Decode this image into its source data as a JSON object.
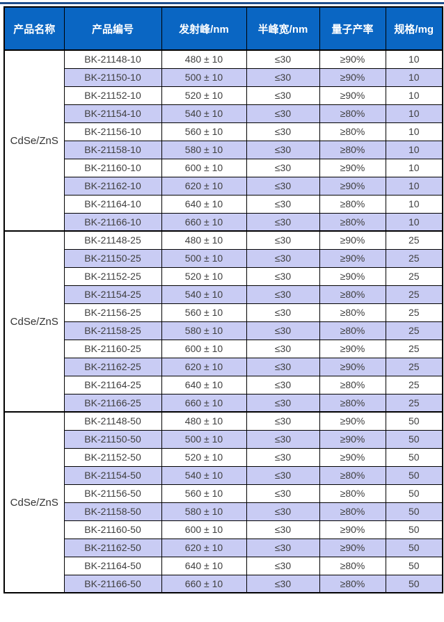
{
  "colors": {
    "header_bg": "#0A66C3",
    "header_text": "#FFFFFF",
    "row_bg": "#FFFFFF",
    "row_alt_bg": "#C9CCF4",
    "border": "#000000",
    "cell_text": "#3F3F3F",
    "group_text": "#333333",
    "top_strip": "#1F4E8C"
  },
  "table": {
    "headers": [
      "产品名称",
      "产品编号",
      "发射峰/nm",
      "半峰宽/nm",
      "量子产率",
      "规格/mg"
    ],
    "groups": [
      {
        "product_name": "CdSe/ZnS",
        "rows": [
          {
            "code": "BK-21148-10",
            "emission": "480 ± 10",
            "fwhm": "≤30",
            "qy": "≥90%",
            "spec": "10"
          },
          {
            "code": "BK-21150-10",
            "emission": "500 ± 10",
            "fwhm": "≤30",
            "qy": "≥90%",
            "spec": "10"
          },
          {
            "code": "BK-21152-10",
            "emission": "520 ± 10",
            "fwhm": "≤30",
            "qy": "≥90%",
            "spec": "10"
          },
          {
            "code": "BK-21154-10",
            "emission": "540 ± 10",
            "fwhm": "≤30",
            "qy": "≥80%",
            "spec": "10"
          },
          {
            "code": "BK-21156-10",
            "emission": "560 ± 10",
            "fwhm": "≤30",
            "qy": "≥80%",
            "spec": "10"
          },
          {
            "code": "BK-21158-10",
            "emission": "580 ± 10",
            "fwhm": "≤30",
            "qy": "≥80%",
            "spec": "10"
          },
          {
            "code": "BK-21160-10",
            "emission": "600 ± 10",
            "fwhm": "≤30",
            "qy": "≥90%",
            "spec": "10"
          },
          {
            "code": "BK-21162-10",
            "emission": "620 ± 10",
            "fwhm": "≤30",
            "qy": "≥90%",
            "spec": "10"
          },
          {
            "code": "BK-21164-10",
            "emission": "640 ± 10",
            "fwhm": "≤30",
            "qy": "≥80%",
            "spec": "10"
          },
          {
            "code": "BK-21166-10",
            "emission": "660 ± 10",
            "fwhm": "≤30",
            "qy": "≥80%",
            "spec": "10"
          }
        ]
      },
      {
        "product_name": "CdSe/ZnS",
        "rows": [
          {
            "code": "BK-21148-25",
            "emission": "480 ± 10",
            "fwhm": "≤30",
            "qy": "≥90%",
            "spec": "25"
          },
          {
            "code": "BK-21150-25",
            "emission": "500 ± 10",
            "fwhm": "≤30",
            "qy": "≥90%",
            "spec": "25"
          },
          {
            "code": "BK-21152-25",
            "emission": "520 ± 10",
            "fwhm": "≤30",
            "qy": "≥90%",
            "spec": "25"
          },
          {
            "code": "BK-21154-25",
            "emission": "540 ± 10",
            "fwhm": "≤30",
            "qy": "≥80%",
            "spec": "25"
          },
          {
            "code": "BK-21156-25",
            "emission": "560 ± 10",
            "fwhm": "≤30",
            "qy": "≥80%",
            "spec": "25"
          },
          {
            "code": "BK-21158-25",
            "emission": "580 ± 10",
            "fwhm": "≤30",
            "qy": "≥80%",
            "spec": "25"
          },
          {
            "code": "BK-21160-25",
            "emission": "600 ± 10",
            "fwhm": "≤30",
            "qy": "≥90%",
            "spec": "25"
          },
          {
            "code": "BK-21162-25",
            "emission": "620 ± 10",
            "fwhm": "≤30",
            "qy": "≥90%",
            "spec": "25"
          },
          {
            "code": "BK-21164-25",
            "emission": "640 ± 10",
            "fwhm": "≤30",
            "qy": "≥80%",
            "spec": "25"
          },
          {
            "code": "BK-21166-25",
            "emission": "660 ± 10",
            "fwhm": "≤30",
            "qy": "≥80%",
            "spec": "25"
          }
        ]
      },
      {
        "product_name": "CdSe/ZnS",
        "rows": [
          {
            "code": "BK-21148-50",
            "emission": "480 ± 10",
            "fwhm": "≤30",
            "qy": "≥90%",
            "spec": "50"
          },
          {
            "code": "BK-21150-50",
            "emission": "500 ± 10",
            "fwhm": "≤30",
            "qy": "≥90%",
            "spec": "50"
          },
          {
            "code": "BK-21152-50",
            "emission": "520 ± 10",
            "fwhm": "≤30",
            "qy": "≥90%",
            "spec": "50"
          },
          {
            "code": "BK-21154-50",
            "emission": "540 ± 10",
            "fwhm": "≤30",
            "qy": "≥80%",
            "spec": "50"
          },
          {
            "code": "BK-21156-50",
            "emission": "560 ± 10",
            "fwhm": "≤30",
            "qy": "≥80%",
            "spec": "50"
          },
          {
            "code": "BK-21158-50",
            "emission": "580 ± 10",
            "fwhm": "≤30",
            "qy": "≥80%",
            "spec": "50"
          },
          {
            "code": "BK-21160-50",
            "emission": "600 ± 10",
            "fwhm": "≤30",
            "qy": "≥90%",
            "spec": "50"
          },
          {
            "code": "BK-21162-50",
            "emission": "620 ± 10",
            "fwhm": "≤30",
            "qy": "≥90%",
            "spec": "50"
          },
          {
            "code": "BK-21164-50",
            "emission": "640 ± 10",
            "fwhm": "≤30",
            "qy": "≥80%",
            "spec": "50"
          },
          {
            "code": "BK-21166-50",
            "emission": "660 ± 10",
            "fwhm": "≤30",
            "qy": "≥80%",
            "spec": "50"
          }
        ]
      }
    ]
  }
}
